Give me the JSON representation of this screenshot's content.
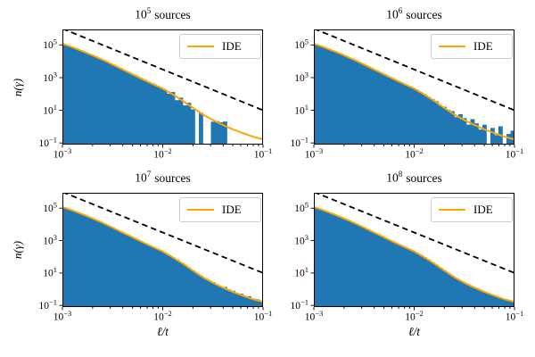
{
  "chart_data": {
    "type": "histogram+line",
    "xlabel": "ℓ/t",
    "ylabel": "n(γ)",
    "xscale": "log",
    "yscale": "log",
    "xlim_log": [
      -3,
      -1
    ],
    "ylim_log": [
      -1.1,
      5.95
    ],
    "legend_label": "IDE",
    "colors": {
      "hist": "#1f77b4",
      "ide": "#ffa500",
      "guide": "#000000"
    },
    "x_ticks": [
      {
        "base": "10",
        "exp": "−3",
        "u": -3
      },
      {
        "base": "10",
        "exp": "−2",
        "u": -2
      },
      {
        "base": "10",
        "exp": "−1",
        "u": -1
      }
    ],
    "y_ticks": [
      {
        "base": "10",
        "exp": "5",
        "v": 5
      },
      {
        "base": "10",
        "exp": "3",
        "v": 3
      },
      {
        "base": "10",
        "exp": "1",
        "v": 1
      },
      {
        "base": "10",
        "exp": "−1",
        "v": -1
      }
    ],
    "guide_line_log": [
      [
        -3,
        6.0
      ],
      [
        -1,
        1.0
      ]
    ],
    "ide_line_log": [
      [
        -3.0,
        5.08
      ],
      [
        -2.9,
        4.86
      ],
      [
        -2.8,
        4.62
      ],
      [
        -2.7,
        4.37
      ],
      [
        -2.6,
        4.1
      ],
      [
        -2.5,
        3.8
      ],
      [
        -2.4,
        3.5
      ],
      [
        -2.3,
        3.2
      ],
      [
        -2.2,
        2.9
      ],
      [
        -2.1,
        2.61
      ],
      [
        -2.0,
        2.33
      ],
      [
        -1.9,
        1.97
      ],
      [
        -1.8,
        1.58
      ],
      [
        -1.7,
        1.15
      ],
      [
        -1.6,
        0.74
      ],
      [
        -1.5,
        0.4
      ],
      [
        -1.4,
        0.1
      ],
      [
        -1.3,
        -0.17
      ],
      [
        -1.2,
        -0.4
      ],
      [
        -1.1,
        -0.62
      ],
      [
        -1.0,
        -0.78
      ]
    ],
    "subplots": [
      {
        "title": {
          "base": "10",
          "exp": "5",
          "suffix": "sources"
        },
        "spike_log": 1.05,
        "bars_log": [
          5.05,
          4.92,
          4.86,
          4.74,
          4.68,
          4.55,
          4.47,
          4.34,
          4.27,
          4.13,
          4.05,
          3.9,
          3.81,
          3.66,
          3.57,
          3.42,
          3.33,
          3.18,
          3.09,
          2.94,
          2.86,
          2.7,
          2.64,
          2.47,
          2.41,
          2.24,
          2.02,
          2.12,
          1.62,
          1.78,
          1.3,
          1.46,
          1.05,
          null,
          0.85,
          null,
          null,
          0.3,
          0.34,
          0.27,
          0.31,
          null,
          null,
          null,
          null,
          null,
          null,
          null,
          null,
          null
        ]
      },
      {
        "title": {
          "base": "10",
          "exp": "6",
          "suffix": "sources"
        },
        "spike_log": 0.35,
        "bars_log": [
          5.04,
          4.95,
          4.84,
          4.77,
          4.66,
          4.58,
          4.45,
          4.37,
          4.25,
          4.16,
          4.03,
          3.93,
          3.79,
          3.69,
          3.55,
          3.45,
          3.31,
          3.21,
          3.07,
          2.97,
          2.83,
          2.74,
          2.61,
          2.51,
          2.38,
          2.27,
          2.11,
          1.99,
          1.82,
          1.69,
          1.55,
          1.28,
          1.22,
          1.02,
          0.95,
          0.58,
          0.76,
          0.52,
          0.12,
          0.46,
          0.2,
          -0.18,
          0.12,
          null,
          -0.08,
          -0.52,
          0.02,
          null,
          -0.45,
          -0.25
        ]
      },
      {
        "title": {
          "base": "10",
          "exp": "7",
          "suffix": "sources"
        },
        "spike_log": 1.0,
        "bars_log": [
          5.04,
          4.93,
          4.85,
          4.75,
          4.67,
          4.56,
          4.46,
          4.35,
          4.26,
          4.14,
          4.04,
          3.91,
          3.8,
          3.67,
          3.56,
          3.43,
          3.32,
          3.19,
          3.08,
          2.95,
          2.84,
          2.72,
          2.62,
          2.49,
          2.39,
          2.25,
          2.12,
          1.97,
          1.84,
          1.66,
          1.5,
          1.31,
          1.15,
          0.98,
          0.83,
          0.66,
          0.54,
          0.44,
          0.3,
          0.14,
          0.13,
          -0.02,
          -0.1,
          -0.24,
          -0.28,
          -0.42,
          -0.44,
          -0.58,
          -0.62,
          -0.7
        ]
      },
      {
        "title": {
          "base": "10",
          "exp": "8",
          "suffix": "sources"
        },
        "spike_log": 0.7,
        "bars_log": [
          5.03,
          4.94,
          4.85,
          4.76,
          4.67,
          4.57,
          4.46,
          4.36,
          4.26,
          4.15,
          4.04,
          3.92,
          3.8,
          3.68,
          3.56,
          3.44,
          3.32,
          3.2,
          3.08,
          2.96,
          2.84,
          2.73,
          2.62,
          2.5,
          2.39,
          2.26,
          2.12,
          1.98,
          1.84,
          1.67,
          1.5,
          1.32,
          1.15,
          0.99,
          0.83,
          0.67,
          0.52,
          0.4,
          0.28,
          0.16,
          0.05,
          -0.06,
          -0.17,
          -0.27,
          -0.36,
          -0.45,
          -0.53,
          -0.62,
          -0.68,
          -0.75
        ]
      }
    ]
  }
}
